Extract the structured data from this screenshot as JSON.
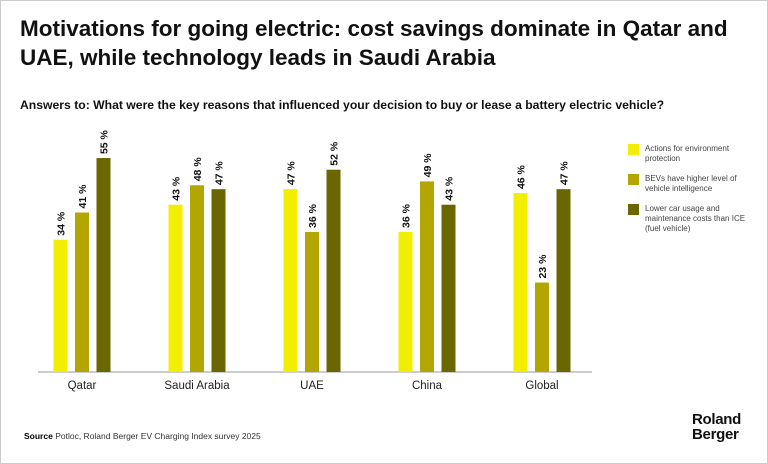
{
  "title": "Motivations for going electric: cost savings dominate in Qatar and UAE, while technology leads in Saudi Arabia",
  "subtitle": "Answers to: What were the key reasons that influenced your decision to buy or lease a battery electric vehicle?",
  "source_label": "Source",
  "source_text": "Potloc, Roland Berger EV Charging Index survey 2025",
  "logo": {
    "line1": "Roland",
    "line2": "Berger"
  },
  "chart_data": {
    "type": "bar",
    "title": "Motivations for going electric: cost savings dominate in Qatar and UAE, while technology leads in Saudi Arabia",
    "xlabel": "",
    "ylabel": "",
    "ylim": [
      0,
      55
    ],
    "grid": false,
    "legend_position": "right",
    "value_suffix": "%",
    "categories": [
      "Qatar",
      "Saudi Arabia",
      "UAE",
      "China",
      "Global"
    ],
    "series": [
      {
        "name": "Actions for environment protection",
        "color": "#f2ee00",
        "values": [
          34,
          43,
          47,
          36,
          46
        ]
      },
      {
        "name": "BEVs have higher level of vehicle intelligence",
        "color": "#b3a600",
        "values": [
          41,
          48,
          36,
          49,
          23
        ]
      },
      {
        "name": "Lower car usage and maintenance costs than ICE (fuel vehicle)",
        "color": "#6b6700",
        "values": [
          55,
          47,
          52,
          43,
          47
        ]
      }
    ]
  }
}
